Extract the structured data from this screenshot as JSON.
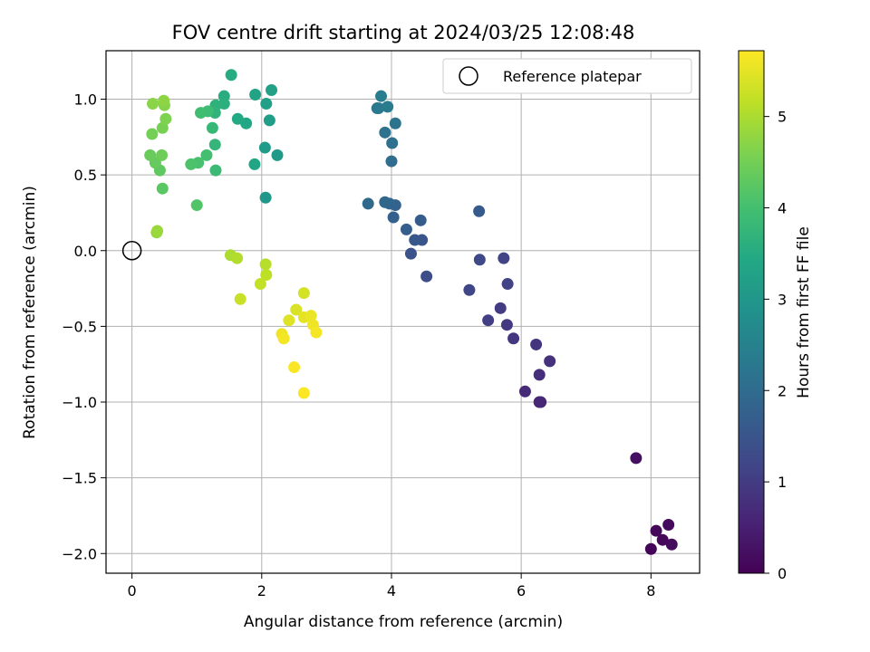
{
  "chart_data": {
    "type": "scatter",
    "title": "FOV centre drift starting at 2024/03/25 12:08:48",
    "xlabel": "Angular distance from reference (arcmin)",
    "ylabel": "Rotation from reference (arcmin)",
    "xlim": [
      -0.4,
      8.75
    ],
    "ylim": [
      -2.13,
      1.32
    ],
    "xticks": [
      0,
      2,
      4,
      6,
      8
    ],
    "yticks": [
      -2.0,
      -1.5,
      -1.0,
      -0.5,
      0.0,
      0.5,
      1.0
    ],
    "xtick_labels": [
      "0",
      "2",
      "4",
      "6",
      "8"
    ],
    "ytick_labels": [
      "−2.0",
      "−1.5",
      "−1.0",
      "−0.5",
      "0.0",
      "0.5",
      "1.0"
    ],
    "grid": true,
    "colormap": "viridis",
    "colorbar": {
      "label": "Hours from first FF file",
      "range": [
        0,
        5.72
      ],
      "ticks": [
        0,
        1,
        2,
        3,
        4,
        5
      ],
      "tick_labels": [
        "0",
        "1",
        "2",
        "3",
        "4",
        "5"
      ]
    },
    "legend": {
      "position": "top-right",
      "entries": [
        "Reference platepar"
      ]
    },
    "reference_point": {
      "x": 0,
      "y": 0
    },
    "points": [
      {
        "x": 8.0,
        "y": -1.97,
        "c": 0.05
      },
      {
        "x": 8.08,
        "y": -1.85,
        "c": 0.1
      },
      {
        "x": 8.18,
        "y": -1.91,
        "c": 0.12
      },
      {
        "x": 8.27,
        "y": -1.81,
        "c": 0.15
      },
      {
        "x": 8.32,
        "y": -1.94,
        "c": 0.18
      },
      {
        "x": 7.77,
        "y": -1.37,
        "c": 0.25
      },
      {
        "x": 6.28,
        "y": -1.0,
        "c": 0.6
      },
      {
        "x": 6.3,
        "y": -1.0,
        "c": 0.65
      },
      {
        "x": 6.06,
        "y": -0.93,
        "c": 0.7
      },
      {
        "x": 6.28,
        "y": -0.82,
        "c": 0.75
      },
      {
        "x": 6.44,
        "y": -0.73,
        "c": 0.8
      },
      {
        "x": 6.23,
        "y": -0.62,
        "c": 0.85
      },
      {
        "x": 5.88,
        "y": -0.58,
        "c": 0.9
      },
      {
        "x": 5.78,
        "y": -0.49,
        "c": 0.95
      },
      {
        "x": 5.68,
        "y": -0.38,
        "c": 1.0
      },
      {
        "x": 5.49,
        "y": -0.46,
        "c": 1.05
      },
      {
        "x": 5.79,
        "y": -0.22,
        "c": 1.1
      },
      {
        "x": 5.73,
        "y": -0.05,
        "c": 1.15
      },
      {
        "x": 5.2,
        "y": -0.26,
        "c": 1.2
      },
      {
        "x": 5.36,
        "y": -0.06,
        "c": 1.25
      },
      {
        "x": 4.54,
        "y": -0.17,
        "c": 1.35
      },
      {
        "x": 4.3,
        "y": -0.02,
        "c": 1.45
      },
      {
        "x": 4.47,
        "y": 0.07,
        "c": 1.5
      },
      {
        "x": 4.36,
        "y": 0.07,
        "c": 1.55
      },
      {
        "x": 5.35,
        "y": 0.26,
        "c": 1.6
      },
      {
        "x": 4.45,
        "y": 0.2,
        "c": 1.65
      },
      {
        "x": 4.23,
        "y": 0.14,
        "c": 1.7
      },
      {
        "x": 4.03,
        "y": 0.22,
        "c": 1.75
      },
      {
        "x": 4.06,
        "y": 0.3,
        "c": 1.8
      },
      {
        "x": 3.97,
        "y": 0.31,
        "c": 1.85
      },
      {
        "x": 3.9,
        "y": 0.32,
        "c": 1.9
      },
      {
        "x": 3.64,
        "y": 0.31,
        "c": 1.95
      },
      {
        "x": 4.0,
        "y": 0.59,
        "c": 2.05
      },
      {
        "x": 4.01,
        "y": 0.71,
        "c": 2.1
      },
      {
        "x": 3.9,
        "y": 0.78,
        "c": 2.15
      },
      {
        "x": 4.06,
        "y": 0.84,
        "c": 2.2
      },
      {
        "x": 3.78,
        "y": 0.94,
        "c": 2.25
      },
      {
        "x": 3.8,
        "y": 0.94,
        "c": 2.3
      },
      {
        "x": 3.94,
        "y": 0.95,
        "c": 2.35
      },
      {
        "x": 3.84,
        "y": 1.02,
        "c": 2.4
      },
      {
        "x": 2.06,
        "y": 0.35,
        "c": 3.0
      },
      {
        "x": 2.24,
        "y": 0.63,
        "c": 3.05
      },
      {
        "x": 2.05,
        "y": 0.68,
        "c": 3.1
      },
      {
        "x": 2.12,
        "y": 0.86,
        "c": 3.15
      },
      {
        "x": 2.07,
        "y": 0.97,
        "c": 3.2
      },
      {
        "x": 2.15,
        "y": 1.06,
        "c": 3.25
      },
      {
        "x": 1.9,
        "y": 1.03,
        "c": 3.3
      },
      {
        "x": 1.89,
        "y": 0.57,
        "c": 3.35
      },
      {
        "x": 1.76,
        "y": 0.84,
        "c": 3.4
      },
      {
        "x": 1.63,
        "y": 0.87,
        "c": 3.45
      },
      {
        "x": 1.53,
        "y": 1.16,
        "c": 3.5
      },
      {
        "x": 1.42,
        "y": 1.02,
        "c": 3.55
      },
      {
        "x": 1.42,
        "y": 0.97,
        "c": 3.6
      },
      {
        "x": 1.29,
        "y": 0.96,
        "c": 3.65
      },
      {
        "x": 1.28,
        "y": 0.91,
        "c": 3.7
      },
      {
        "x": 1.28,
        "y": 0.7,
        "c": 3.75
      },
      {
        "x": 1.24,
        "y": 0.81,
        "c": 3.8
      },
      {
        "x": 1.29,
        "y": 0.53,
        "c": 3.85
      },
      {
        "x": 1.17,
        "y": 0.92,
        "c": 3.9
      },
      {
        "x": 1.06,
        "y": 0.91,
        "c": 3.95
      },
      {
        "x": 1.15,
        "y": 0.63,
        "c": 4.0
      },
      {
        "x": 1.02,
        "y": 0.58,
        "c": 4.05
      },
      {
        "x": 0.91,
        "y": 0.57,
        "c": 4.1
      },
      {
        "x": 1.0,
        "y": 0.3,
        "c": 4.15
      },
      {
        "x": 0.47,
        "y": 0.41,
        "c": 4.25
      },
      {
        "x": 0.43,
        "y": 0.53,
        "c": 4.3
      },
      {
        "x": 0.36,
        "y": 0.58,
        "c": 4.35
      },
      {
        "x": 0.28,
        "y": 0.63,
        "c": 4.4
      },
      {
        "x": 0.46,
        "y": 0.63,
        "c": 4.45
      },
      {
        "x": 0.31,
        "y": 0.77,
        "c": 4.5
      },
      {
        "x": 0.47,
        "y": 0.81,
        "c": 4.55
      },
      {
        "x": 0.52,
        "y": 0.87,
        "c": 4.6
      },
      {
        "x": 0.5,
        "y": 0.96,
        "c": 4.65
      },
      {
        "x": 0.32,
        "y": 0.97,
        "c": 4.7
      },
      {
        "x": 0.49,
        "y": 0.99,
        "c": 4.75
      },
      {
        "x": 0.38,
        "y": 0.12,
        "c": 4.8
      },
      {
        "x": 0.39,
        "y": 0.13,
        "c": 4.85
      },
      {
        "x": 1.52,
        "y": -0.03,
        "c": 5.0
      },
      {
        "x": 1.62,
        "y": -0.05,
        "c": 5.05
      },
      {
        "x": 2.06,
        "y": -0.09,
        "c": 5.1
      },
      {
        "x": 2.07,
        "y": -0.16,
        "c": 5.15
      },
      {
        "x": 1.98,
        "y": -0.22,
        "c": 5.2
      },
      {
        "x": 1.67,
        "y": -0.32,
        "c": 5.25
      },
      {
        "x": 2.65,
        "y": -0.28,
        "c": 5.35
      },
      {
        "x": 2.53,
        "y": -0.39,
        "c": 5.4
      },
      {
        "x": 2.42,
        "y": -0.46,
        "c": 5.45
      },
      {
        "x": 2.65,
        "y": -0.44,
        "c": 5.5
      },
      {
        "x": 2.76,
        "y": -0.43,
        "c": 5.55
      },
      {
        "x": 2.79,
        "y": -0.49,
        "c": 5.6
      },
      {
        "x": 2.84,
        "y": -0.54,
        "c": 5.65
      },
      {
        "x": 2.31,
        "y": -0.55,
        "c": 5.6
      },
      {
        "x": 2.34,
        "y": -0.58,
        "c": 5.62
      },
      {
        "x": 2.5,
        "y": -0.77,
        "c": 5.68
      },
      {
        "x": 2.65,
        "y": -0.94,
        "c": 5.7
      }
    ]
  }
}
